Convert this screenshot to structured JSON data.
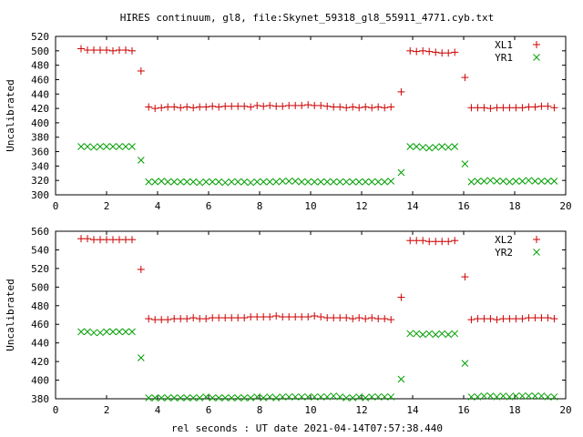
{
  "figure": {
    "title": "HIRES continuum, gl8, file:Skynet_59318_gl8_55911_4771.cyb.txt",
    "xlabel": "rel seconds : UT date 2021-04-14T07:57:38.440"
  },
  "chart_data": [
    {
      "type": "scatter",
      "ylabel": "Uncalibrated",
      "xlim": [
        0,
        20
      ],
      "ylim": [
        300,
        520
      ],
      "xticks": [
        0,
        2,
        4,
        6,
        8,
        10,
        12,
        14,
        16,
        18,
        20
      ],
      "yticks": [
        300,
        320,
        340,
        360,
        380,
        400,
        420,
        440,
        460,
        480,
        500,
        520
      ],
      "legend_position": "top-right",
      "grid": false,
      "series": [
        {
          "name": "XL1",
          "marker": "plus",
          "color": "#cc0000",
          "x": [
            1.0,
            1.25,
            1.5,
            1.75,
            2.0,
            2.25,
            2.5,
            2.75,
            3.0,
            3.35,
            3.65,
            3.9,
            4.15,
            4.4,
            4.65,
            4.9,
            5.15,
            5.4,
            5.65,
            5.9,
            6.15,
            6.4,
            6.65,
            6.9,
            7.15,
            7.4,
            7.65,
            7.9,
            8.15,
            8.4,
            8.65,
            8.9,
            9.15,
            9.4,
            9.65,
            9.9,
            10.15,
            10.4,
            10.65,
            10.9,
            11.15,
            11.4,
            11.65,
            11.9,
            12.15,
            12.4,
            12.65,
            12.9,
            13.15,
            13.55,
            13.9,
            14.15,
            14.4,
            14.65,
            14.9,
            15.15,
            15.4,
            15.65,
            16.05,
            16.3,
            16.55,
            16.8,
            17.05,
            17.3,
            17.55,
            17.8,
            18.05,
            18.3,
            18.55,
            18.8,
            19.05,
            19.3,
            19.55
          ],
          "y": [
            503,
            501,
            501,
            501,
            501,
            500,
            501,
            501,
            500,
            472,
            422,
            420,
            421,
            422,
            422,
            421,
            422,
            421,
            422,
            422,
            423,
            422,
            423,
            423,
            423,
            423,
            422,
            424,
            423,
            424,
            423,
            423,
            424,
            424,
            424,
            425,
            424,
            424,
            423,
            422,
            422,
            421,
            422,
            421,
            422,
            421,
            422,
            421,
            422,
            443,
            500,
            499,
            500,
            499,
            498,
            497,
            497,
            498,
            463,
            421,
            421,
            421,
            420,
            421,
            421,
            421,
            421,
            421,
            422,
            422,
            423,
            423,
            421
          ]
        },
        {
          "name": "YR1",
          "marker": "cross",
          "color": "#00a000",
          "x": [
            1.0,
            1.25,
            1.5,
            1.75,
            2.0,
            2.25,
            2.5,
            2.75,
            3.0,
            3.35,
            3.65,
            3.9,
            4.15,
            4.4,
            4.65,
            4.9,
            5.15,
            5.4,
            5.65,
            5.9,
            6.15,
            6.4,
            6.65,
            6.9,
            7.15,
            7.4,
            7.65,
            7.9,
            8.15,
            8.4,
            8.65,
            8.9,
            9.15,
            9.4,
            9.65,
            9.9,
            10.15,
            10.4,
            10.65,
            10.9,
            11.15,
            11.4,
            11.65,
            11.9,
            12.15,
            12.4,
            12.65,
            12.9,
            13.15,
            13.55,
            13.9,
            14.15,
            14.4,
            14.65,
            14.9,
            15.15,
            15.4,
            15.65,
            16.05,
            16.3,
            16.55,
            16.8,
            17.05,
            17.3,
            17.55,
            17.8,
            18.05,
            18.3,
            18.55,
            18.8,
            19.05,
            19.3,
            19.55
          ],
          "y": [
            367,
            367,
            366,
            367,
            367,
            367,
            367,
            367,
            367,
            348,
            318,
            318,
            319,
            318,
            318,
            318,
            318,
            318,
            317,
            318,
            318,
            318,
            317,
            318,
            318,
            318,
            317,
            318,
            318,
            318,
            318,
            319,
            319,
            319,
            318,
            318,
            318,
            318,
            318,
            318,
            318,
            318,
            318,
            318,
            318,
            318,
            318,
            318,
            319,
            331,
            367,
            367,
            366,
            365,
            366,
            367,
            366,
            367,
            343,
            318,
            319,
            319,
            320,
            319,
            319,
            318,
            319,
            319,
            320,
            319,
            319,
            319,
            319
          ]
        }
      ]
    },
    {
      "type": "scatter",
      "ylabel": "Uncalibrated",
      "xlim": [
        0,
        20
      ],
      "ylim": [
        380,
        560
      ],
      "xticks": [
        0,
        2,
        4,
        6,
        8,
        10,
        12,
        14,
        16,
        18,
        20
      ],
      "yticks": [
        380,
        400,
        420,
        440,
        460,
        480,
        500,
        520,
        540,
        560
      ],
      "legend_position": "top-right",
      "grid": false,
      "series": [
        {
          "name": "XL2",
          "marker": "plus",
          "color": "#cc0000",
          "x": [
            1.0,
            1.25,
            1.5,
            1.75,
            2.0,
            2.25,
            2.5,
            2.75,
            3.0,
            3.35,
            3.65,
            3.9,
            4.15,
            4.4,
            4.65,
            4.9,
            5.15,
            5.4,
            5.65,
            5.9,
            6.15,
            6.4,
            6.65,
            6.9,
            7.15,
            7.4,
            7.65,
            7.9,
            8.15,
            8.4,
            8.65,
            8.9,
            9.15,
            9.4,
            9.65,
            9.9,
            10.15,
            10.4,
            10.65,
            10.9,
            11.15,
            11.4,
            11.65,
            11.9,
            12.15,
            12.4,
            12.65,
            12.9,
            13.15,
            13.55,
            13.9,
            14.15,
            14.4,
            14.65,
            14.9,
            15.15,
            15.4,
            15.65,
            16.05,
            16.3,
            16.55,
            16.8,
            17.05,
            17.3,
            17.55,
            17.8,
            18.05,
            18.3,
            18.55,
            18.8,
            19.05,
            19.3,
            19.55
          ],
          "y": [
            552,
            552,
            551,
            551,
            551,
            551,
            551,
            551,
            551,
            519,
            466,
            465,
            465,
            465,
            466,
            466,
            466,
            467,
            466,
            466,
            467,
            467,
            467,
            467,
            467,
            467,
            468,
            468,
            468,
            468,
            469,
            468,
            468,
            468,
            468,
            468,
            469,
            468,
            467,
            467,
            467,
            467,
            466,
            467,
            466,
            467,
            466,
            466,
            465,
            489,
            550,
            550,
            550,
            549,
            549,
            549,
            549,
            550,
            511,
            465,
            466,
            466,
            466,
            465,
            466,
            466,
            466,
            466,
            467,
            467,
            467,
            467,
            466
          ]
        },
        {
          "name": "YR2",
          "marker": "cross",
          "color": "#00a000",
          "x": [
            1.0,
            1.25,
            1.5,
            1.75,
            2.0,
            2.25,
            2.5,
            2.75,
            3.0,
            3.35,
            3.65,
            3.9,
            4.15,
            4.4,
            4.65,
            4.9,
            5.15,
            5.4,
            5.65,
            5.9,
            6.15,
            6.4,
            6.65,
            6.9,
            7.15,
            7.4,
            7.65,
            7.9,
            8.15,
            8.4,
            8.65,
            8.9,
            9.15,
            9.4,
            9.65,
            9.9,
            10.15,
            10.4,
            10.65,
            10.9,
            11.15,
            11.4,
            11.65,
            11.9,
            12.15,
            12.4,
            12.65,
            12.9,
            13.15,
            13.55,
            13.9,
            14.15,
            14.4,
            14.65,
            14.9,
            15.15,
            15.4,
            15.65,
            16.05,
            16.3,
            16.55,
            16.8,
            17.05,
            17.3,
            17.55,
            17.8,
            18.05,
            18.3,
            18.55,
            18.8,
            19.05,
            19.3,
            19.55
          ],
          "y": [
            452,
            452,
            451,
            451,
            452,
            452,
            452,
            452,
            452,
            424,
            381,
            381,
            381,
            381,
            381,
            381,
            381,
            381,
            381,
            382,
            381,
            381,
            381,
            381,
            381,
            381,
            381,
            382,
            381,
            382,
            381,
            382,
            382,
            382,
            382,
            382,
            382,
            382,
            382,
            383,
            382,
            381,
            381,
            382,
            381,
            382,
            382,
            382,
            382,
            401,
            450,
            450,
            449,
            450,
            449,
            450,
            449,
            450,
            418,
            382,
            382,
            383,
            383,
            382,
            383,
            382,
            383,
            383,
            383,
            383,
            383,
            382,
            382
          ]
        }
      ]
    }
  ]
}
